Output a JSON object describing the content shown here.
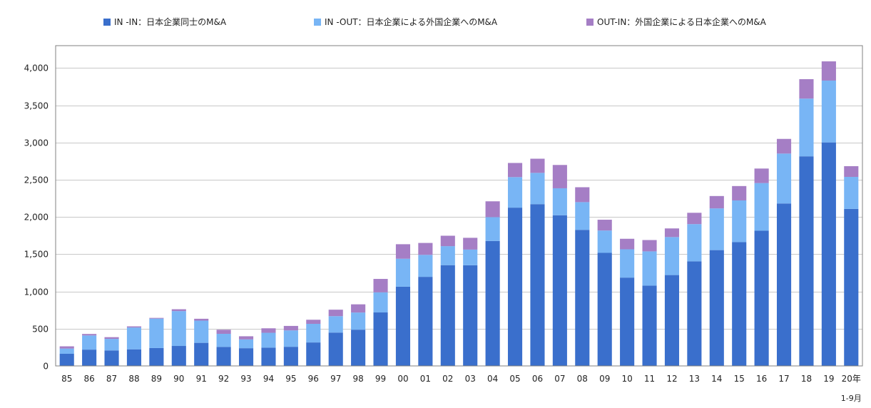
{
  "chart_data": {
    "type": "bar",
    "stacked": true,
    "title": "",
    "xlabel": "",
    "ylabel": "",
    "ylim": [
      0,
      4300
    ],
    "yticks": [
      0,
      500,
      1000,
      1500,
      2000,
      2500,
      3000,
      3500,
      4000
    ],
    "ytick_labels": [
      "0",
      "500",
      "1,000",
      "1,500",
      "2,000",
      "2,500",
      "3,000",
      "3,500",
      "4,000"
    ],
    "grid": true,
    "legend_position": "top",
    "categories": [
      "85",
      "86",
      "87",
      "88",
      "89",
      "90",
      "91",
      "92",
      "93",
      "94",
      "95",
      "96",
      "97",
      "98",
      "99",
      "00",
      "01",
      "02",
      "03",
      "04",
      "05",
      "06",
      "07",
      "08",
      "09",
      "10",
      "11",
      "12",
      "13",
      "14",
      "15",
      "16",
      "17",
      "18",
      "19",
      "20年"
    ],
    "last_category_note": "1-9月",
    "series": [
      {
        "name": "IN -IN：日本企業同士のM&A",
        "color": "#3a6fcc",
        "values": [
          163,
          219,
          208,
          223,
          240,
          268,
          310,
          256,
          238,
          245,
          257,
          315,
          448,
          487,
          718,
          1064,
          1196,
          1353,
          1352,
          1677,
          2125,
          2172,
          2023,
          1827,
          1518,
          1186,
          1078,
          1220,
          1404,
          1555,
          1662,
          1815,
          2181,
          2814,
          3001,
          2108
        ]
      },
      {
        "name": "IN -OUT：日本企業による外国企業へのM&A",
        "color": "#78b5f5",
        "values": [
          70,
          190,
          155,
          293,
          395,
          468,
          298,
          175,
          118,
          200,
          220,
          250,
          220,
          230,
          270,
          375,
          295,
          255,
          210,
          320,
          410,
          420,
          362,
          372,
          300,
          380,
          460,
          510,
          500,
          560,
          560,
          640,
          670,
          775,
          830,
          430
        ]
      },
      {
        "name": "OUT-IN：外国企業による日本企業へのM&A",
        "color": "#a57ec5",
        "values": [
          30,
          20,
          23,
          15,
          10,
          25,
          25,
          55,
          42,
          60,
          60,
          55,
          87,
          110,
          180,
          195,
          160,
          140,
          158,
          213,
          190,
          190,
          313,
          200,
          145,
          141,
          152,
          116,
          152,
          166,
          193,
          195,
          197,
          261,
          258,
          144
        ]
      }
    ]
  }
}
